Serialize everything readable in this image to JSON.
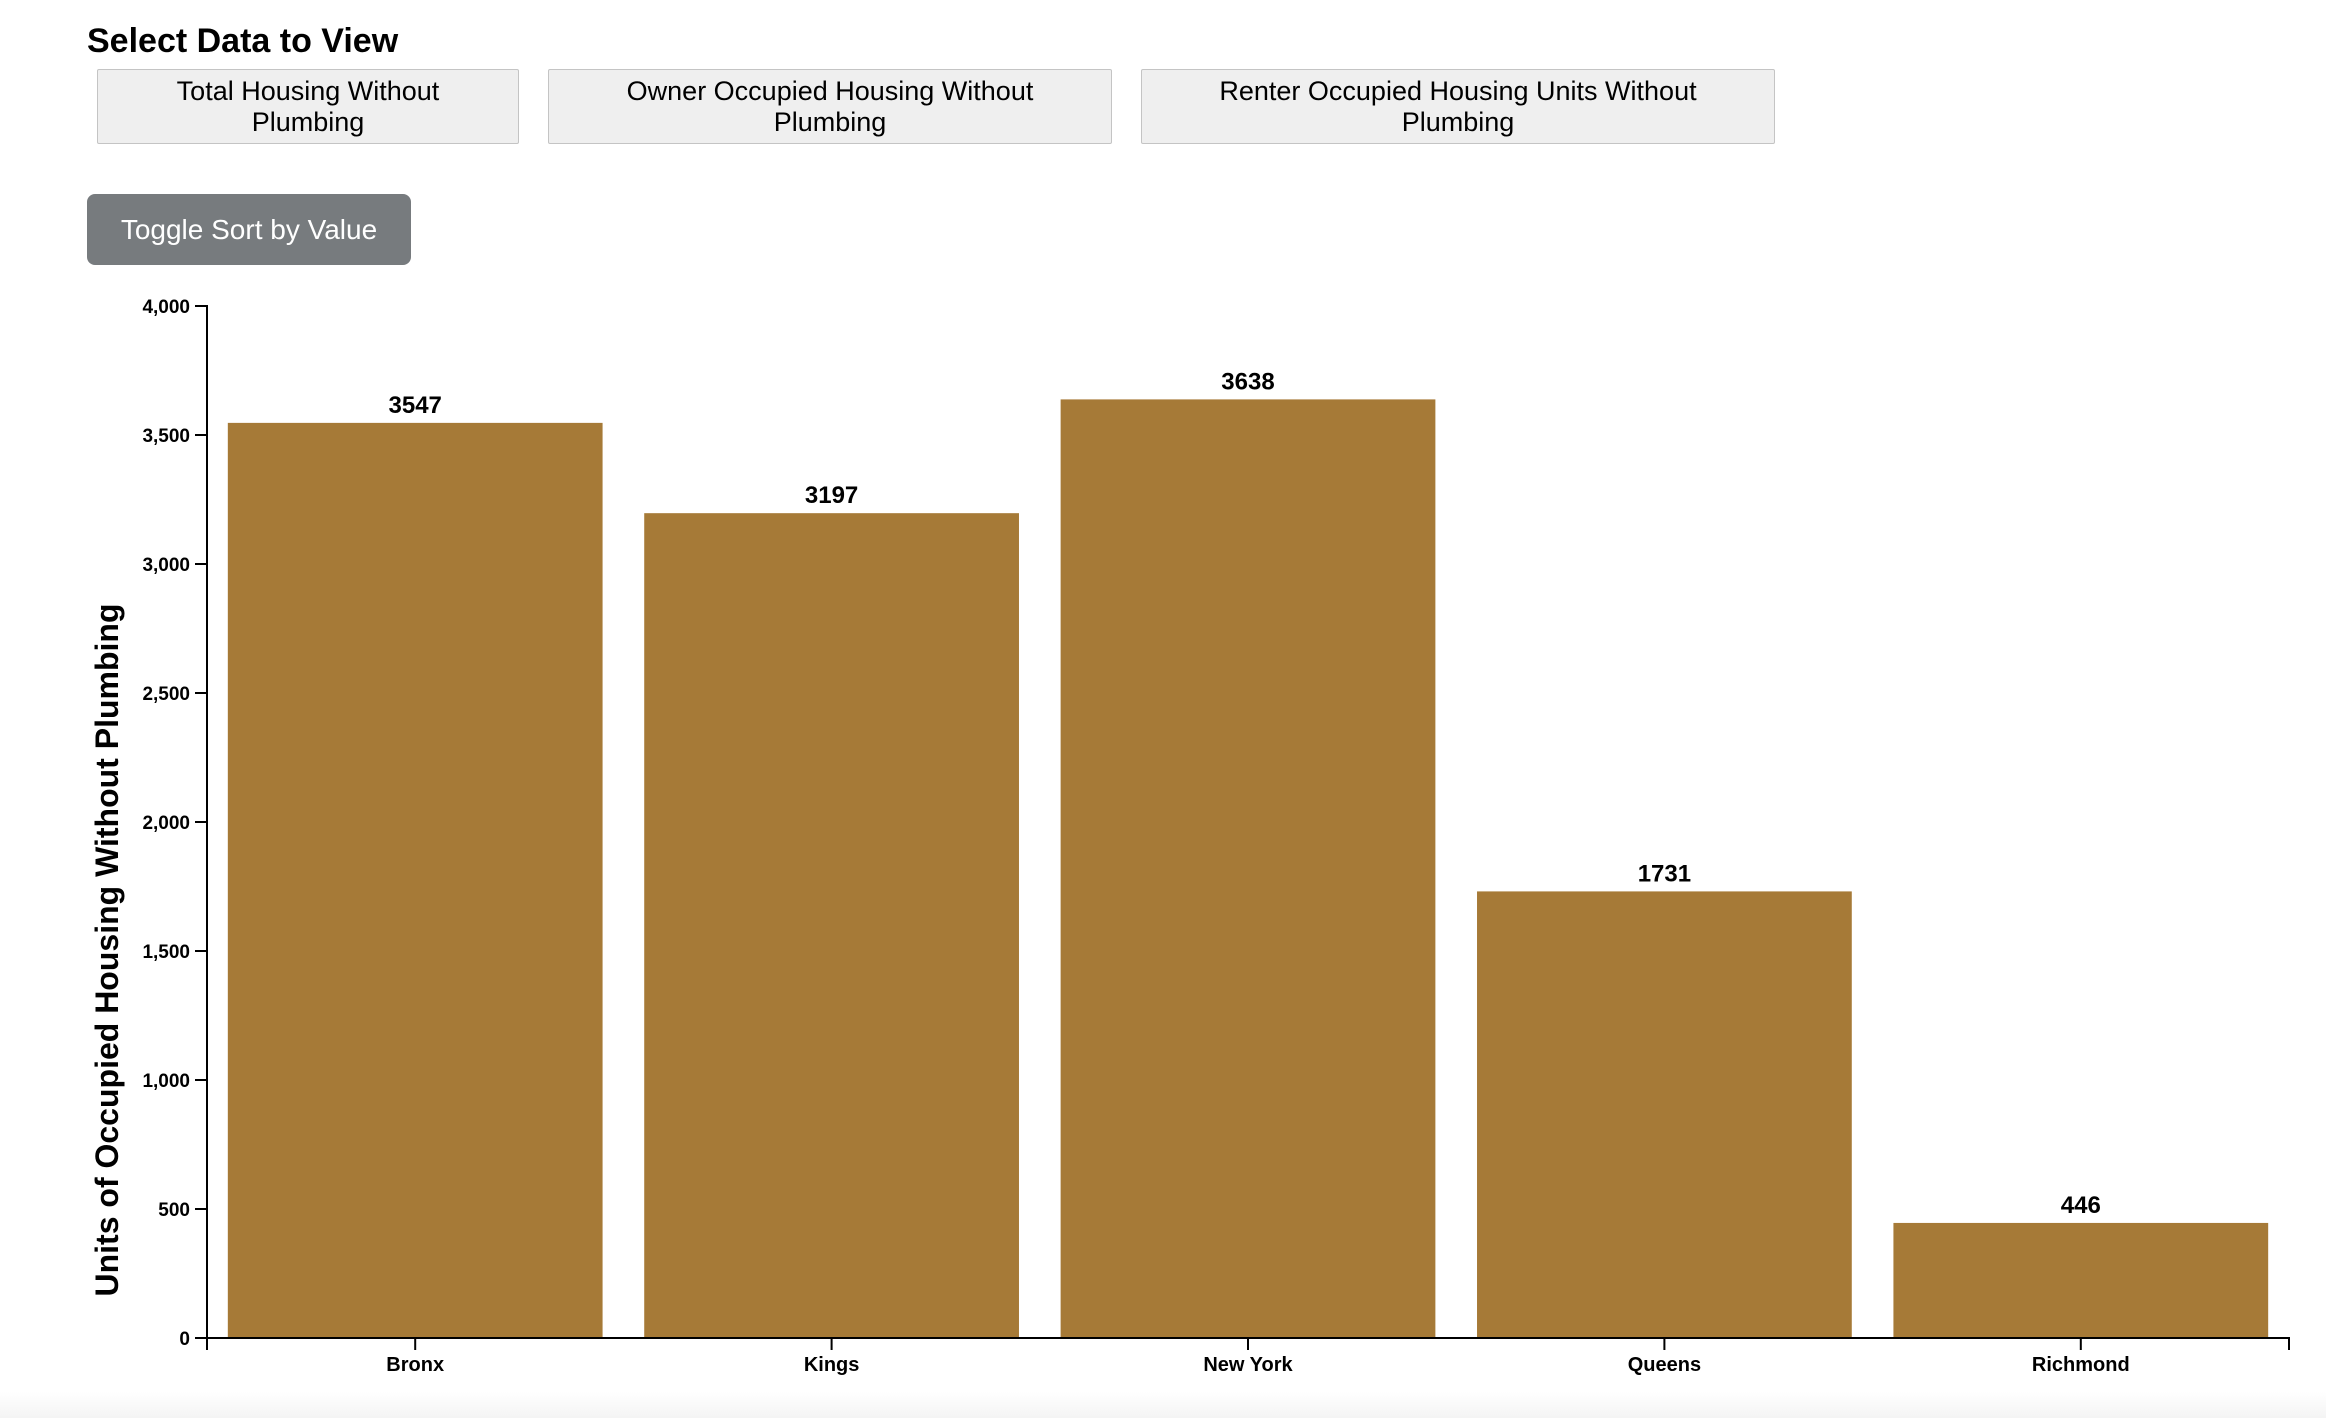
{
  "header": {
    "title": "Select Data to View"
  },
  "dataset_buttons": [
    {
      "label": "Total Housing Without Plumbing"
    },
    {
      "label": "Owner Occupied Housing Without Plumbing"
    },
    {
      "label": "Renter Occupied Housing Units Without Plumbing"
    }
  ],
  "controls": {
    "sort_label": "Toggle Sort by Value"
  },
  "colors": {
    "bar": "#a67a37",
    "sort_button": "#777b7e"
  },
  "chart_data": {
    "type": "bar",
    "title": "",
    "xlabel": "",
    "ylabel": "Units of Occupied Housing Without Plumbing",
    "categories": [
      "Bronx",
      "Kings",
      "New York",
      "Queens",
      "Richmond"
    ],
    "values": [
      3547,
      3197,
      3638,
      1731,
      446
    ],
    "data_labels": [
      "3547",
      "3197",
      "3638",
      "1731",
      "446"
    ],
    "ylim": [
      0,
      4000
    ],
    "yticks": [
      0,
      500,
      1000,
      1500,
      2000,
      2500,
      3000,
      3500,
      4000
    ],
    "ytick_labels": [
      "0",
      "500",
      "1,000",
      "1,500",
      "2,000",
      "2,500",
      "3,000",
      "3,500",
      "4,000"
    ],
    "grid": false,
    "legend": "none"
  }
}
